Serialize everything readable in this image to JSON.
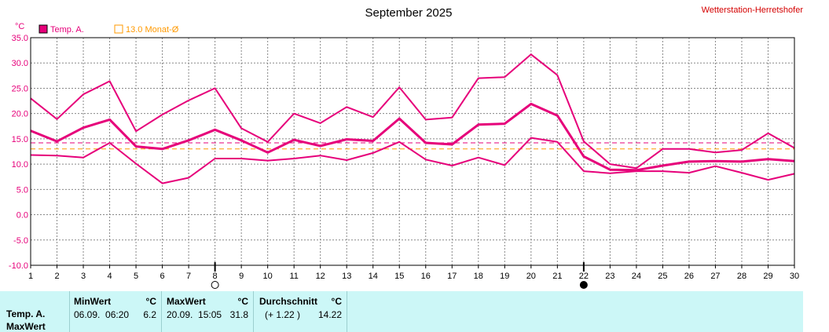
{
  "chart_data": {
    "type": "line",
    "title": "September 2025",
    "station": "Wetterstation-Herretshofer",
    "y_unit": "°C",
    "ylim": [
      -10,
      35
    ],
    "y_ticks": [
      "35.0",
      "30.0",
      "25.0",
      "20.0",
      "15.0",
      "10.0",
      "5.0",
      "0.0",
      "-5.0",
      "-10.0"
    ],
    "x": [
      1,
      2,
      3,
      4,
      5,
      6,
      7,
      8,
      9,
      10,
      11,
      12,
      13,
      14,
      15,
      16,
      17,
      18,
      19,
      20,
      21,
      22,
      23,
      24,
      25,
      26,
      27,
      28,
      29,
      30
    ],
    "x_labels": [
      "1",
      "2",
      "3",
      "4",
      "5",
      "6",
      "7",
      "8",
      "9",
      "10",
      "11",
      "12",
      "13",
      "14",
      "15",
      "16",
      "17",
      "18",
      "19",
      "20",
      "21",
      "22",
      "23",
      "24",
      "25",
      "26",
      "27",
      "28",
      "29",
      "30"
    ],
    "legend": [
      {
        "label": "Temp. A.",
        "color": "#e6007a"
      },
      {
        "label": "13.0 Monat-Ø",
        "color": "#ff9900"
      }
    ],
    "series": [
      {
        "role": "max",
        "color": "#e6007a",
        "values": [
          23.0,
          18.9,
          23.8,
          26.4,
          16.5,
          19.8,
          22.6,
          25.0,
          17.1,
          14.4,
          20.0,
          18.1,
          21.3,
          19.3,
          25.2,
          18.8,
          19.2,
          27.0,
          27.2,
          31.7,
          27.6,
          14.5,
          10.0,
          9.2,
          13.0,
          13.0,
          12.3,
          12.8,
          16.1,
          13.2
        ]
      },
      {
        "role": "mean",
        "color": "#e6007a",
        "values": [
          16.6,
          14.5,
          17.2,
          18.8,
          13.5,
          13.0,
          14.7,
          16.8,
          14.7,
          12.3,
          14.8,
          13.6,
          14.9,
          14.6,
          19.0,
          14.2,
          13.9,
          17.8,
          18.0,
          21.9,
          19.6,
          11.5,
          8.9,
          8.8,
          9.7,
          10.5,
          10.6,
          10.5,
          11.0,
          10.6
        ]
      },
      {
        "role": "min",
        "color": "#e6007a",
        "values": [
          11.8,
          11.7,
          11.3,
          14.2,
          10.1,
          6.2,
          7.3,
          11.1,
          11.1,
          10.7,
          11.1,
          11.7,
          10.8,
          12.2,
          14.4,
          10.9,
          9.7,
          11.3,
          9.8,
          15.2,
          14.4,
          8.6,
          8.2,
          8.6,
          8.6,
          8.3,
          9.6,
          8.3,
          6.9,
          8.1
        ]
      }
    ],
    "ref_lines": [
      {
        "value": 13.0,
        "color": "#ff9900",
        "style": "dashed"
      },
      {
        "value": 14.2,
        "color": "#e6007a",
        "style": "dashed"
      }
    ],
    "markers": [
      {
        "x": 8,
        "symbol": "full-moon-icon"
      },
      {
        "x": 22,
        "symbol": "new-moon-icon"
      }
    ],
    "grid": true
  },
  "stats": {
    "row_labels": [
      "Temp. A.",
      "MaxWert"
    ],
    "min": {
      "header": "MinWert",
      "unit": "°C",
      "when": "06.09.  06:20",
      "value": "6.2"
    },
    "max": {
      "header": "MaxWert",
      "unit": "°C",
      "when": "20.09.  15:05",
      "value": "31.8"
    },
    "avg": {
      "header": "Durchschnitt",
      "unit": "°C",
      "delta": "(+ 1.22 )",
      "value": "14.22"
    }
  }
}
